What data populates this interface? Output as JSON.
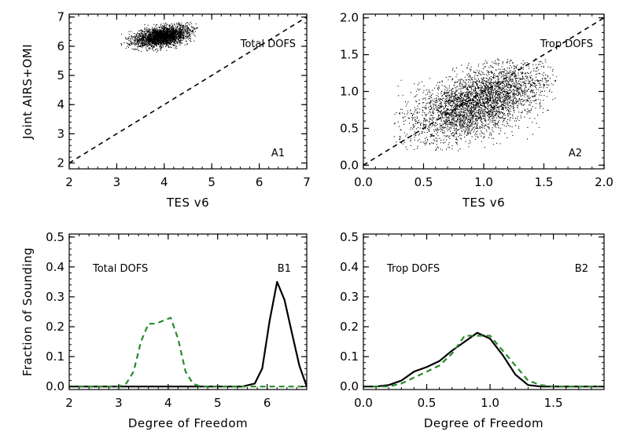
{
  "chart_data": [
    {
      "id": "A1",
      "type": "scatter",
      "panel_label": "A1",
      "annotation": "Total DOFS",
      "xlabel": "TES v6",
      "ylabel": "Joint AIRS+OMI",
      "xlim": [
        2,
        7
      ],
      "ylim": [
        1.8,
        7.1
      ],
      "xticks": [
        2,
        3,
        4,
        5,
        6,
        7
      ],
      "yticks": [
        2,
        3,
        4,
        5,
        6,
        7
      ],
      "x_tick_labels": [
        "2",
        "3",
        "4",
        "5",
        "6",
        "7"
      ],
      "y_tick_labels": [
        "2",
        "3",
        "4",
        "5",
        "6",
        "7"
      ],
      "reference_line": {
        "style": "dashed",
        "color": "#000000",
        "from": [
          2,
          2
        ],
        "to": [
          7,
          7
        ]
      },
      "point_cloud": {
        "center": [
          3.95,
          6.35
        ],
        "spread": [
          0.28,
          0.16
        ],
        "x_range": [
          3.0,
          4.7
        ],
        "y_range": [
          5.75,
          6.85
        ],
        "slope": 0.25,
        "approx_count": 2600,
        "color": "#000000"
      },
      "points": [
        [
          3.1,
          6.05
        ],
        [
          3.3,
          6.1
        ],
        [
          3.5,
          6.2
        ],
        [
          3.7,
          6.25
        ],
        [
          3.9,
          6.35
        ],
        [
          4.1,
          6.4
        ],
        [
          4.3,
          6.5
        ],
        [
          4.5,
          6.6
        ],
        [
          3.6,
          6.4
        ],
        [
          4.0,
          6.2
        ],
        [
          4.2,
          6.6
        ],
        [
          3.4,
          5.9
        ]
      ]
    },
    {
      "id": "A2",
      "type": "scatter",
      "panel_label": "A2",
      "annotation": "Trop DOFS",
      "xlabel": "TES v6",
      "ylabel": "",
      "xlim": [
        0,
        2
      ],
      "ylim": [
        -0.05,
        2.05
      ],
      "xticks": [
        0,
        0.5,
        1.0,
        1.5,
        2.0
      ],
      "yticks": [
        0,
        0.5,
        1.0,
        1.5,
        2.0
      ],
      "x_tick_labels": [
        "0.0",
        "0.5",
        "1.0",
        "1.5",
        "2.0"
      ],
      "y_tick_labels": [
        "0.0",
        "0.5",
        "1.0",
        "1.5",
        "2.0"
      ],
      "reference_line": {
        "style": "dashed",
        "color": "#000000",
        "from": [
          0,
          0
        ],
        "to": [
          2,
          2
        ]
      },
      "point_cloud": {
        "center": [
          0.95,
          0.85
        ],
        "spread": [
          0.28,
          0.22
        ],
        "x_range": [
          0.25,
          1.6
        ],
        "y_range": [
          0.2,
          1.45
        ],
        "slope": 0.5,
        "approx_count": 3600,
        "color": "#000000"
      },
      "points": [
        [
          0.3,
          0.35
        ],
        [
          0.5,
          0.55
        ],
        [
          0.7,
          0.7
        ],
        [
          0.9,
          0.85
        ],
        [
          1.0,
          0.95
        ],
        [
          1.1,
          1.0
        ],
        [
          1.3,
          1.05
        ],
        [
          1.5,
          1.1
        ],
        [
          0.8,
          1.1
        ],
        [
          1.2,
          0.7
        ]
      ]
    },
    {
      "id": "B1",
      "type": "line",
      "panel_label": "B1",
      "annotation": "Total DOFS",
      "xlabel": "Degree of Freedom",
      "ylabel": "Fraction of Sounding",
      "xlim": [
        2,
        6.8
      ],
      "ylim": [
        -0.01,
        0.51
      ],
      "xticks": [
        2,
        3,
        4,
        5,
        6
      ],
      "yticks": [
        0,
        0.1,
        0.2,
        0.3,
        0.4,
        0.5
      ],
      "x_tick_labels": [
        "2",
        "3",
        "4",
        "5",
        "6"
      ],
      "y_tick_labels": [
        "0.0",
        "0.1",
        "0.2",
        "0.3",
        "0.4",
        "0.5"
      ],
      "series": [
        {
          "color": "#000000",
          "style": "solid",
          "x": [
            2.0,
            5.0,
            5.5,
            5.75,
            5.9,
            6.05,
            6.2,
            6.35,
            6.5,
            6.65,
            6.8
          ],
          "values": [
            0,
            0,
            0.0,
            0.01,
            0.06,
            0.22,
            0.35,
            0.29,
            0.18,
            0.07,
            0.0
          ]
        },
        {
          "color": "#2a8a2a",
          "style": "dashed",
          "x": [
            2.0,
            3.0,
            3.15,
            3.3,
            3.45,
            3.6,
            3.75,
            3.9,
            4.05,
            4.2,
            4.35,
            4.5,
            4.65,
            6.8
          ],
          "values": [
            0,
            0,
            0.01,
            0.05,
            0.15,
            0.21,
            0.21,
            0.22,
            0.23,
            0.16,
            0.05,
            0.01,
            0,
            0
          ]
        }
      ]
    },
    {
      "id": "B2",
      "type": "line",
      "panel_label": "B2",
      "annotation": "Trop DOFS",
      "xlabel": "Degree of Freedom",
      "ylabel": "",
      "xlim": [
        0,
        1.9
      ],
      "ylim": [
        -0.01,
        0.51
      ],
      "xticks": [
        0,
        0.5,
        1.0,
        1.5
      ],
      "yticks": [
        0,
        0.1,
        0.2,
        0.3,
        0.4,
        0.5
      ],
      "x_tick_labels": [
        "0.0",
        "0.5",
        "1.0",
        "1.5"
      ],
      "y_tick_labels": [
        "0.0",
        "0.1",
        "0.2",
        "0.3",
        "0.4",
        "0.5"
      ],
      "series": [
        {
          "color": "#000000",
          "style": "solid",
          "x": [
            0.0,
            0.1,
            0.2,
            0.3,
            0.4,
            0.5,
            0.6,
            0.7,
            0.8,
            0.9,
            1.0,
            1.1,
            1.2,
            1.3,
            1.4,
            1.9
          ],
          "values": [
            0,
            0,
            0.005,
            0.02,
            0.05,
            0.065,
            0.085,
            0.12,
            0.15,
            0.18,
            0.16,
            0.105,
            0.04,
            0.005,
            0,
            0
          ]
        },
        {
          "color": "#2a8a2a",
          "style": "dashed",
          "x": [
            0.0,
            0.1,
            0.2,
            0.3,
            0.4,
            0.5,
            0.6,
            0.7,
            0.8,
            0.9,
            1.0,
            1.1,
            1.2,
            1.3,
            1.4,
            1.5,
            1.9
          ],
          "values": [
            0,
            0,
            0,
            0.01,
            0.03,
            0.05,
            0.07,
            0.11,
            0.17,
            0.17,
            0.17,
            0.12,
            0.07,
            0.02,
            0.005,
            0,
            0
          ]
        }
      ]
    }
  ]
}
